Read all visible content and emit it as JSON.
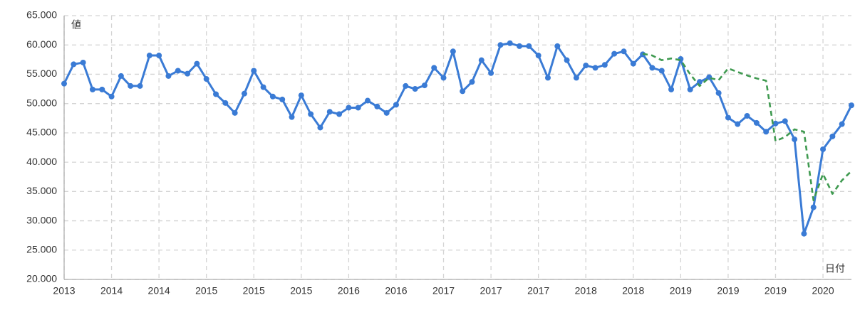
{
  "chart_data": {
    "type": "line",
    "y_label": "値",
    "x_label": "日付",
    "categories": [
      "2013",
      null,
      null,
      null,
      null,
      "2014",
      null,
      null,
      null,
      null,
      "2014",
      null,
      null,
      null,
      null,
      "2015",
      null,
      null,
      null,
      null,
      "2015",
      null,
      null,
      null,
      null,
      "2015",
      null,
      null,
      null,
      null,
      "2016",
      null,
      null,
      null,
      null,
      "2016",
      null,
      null,
      null,
      null,
      "2017",
      null,
      null,
      null,
      null,
      "2017",
      null,
      null,
      null,
      null,
      "2017",
      null,
      null,
      null,
      null,
      "2018",
      null,
      null,
      null,
      null,
      "2018",
      null,
      null,
      null,
      null,
      "2019",
      null,
      null,
      null,
      null,
      "2019",
      null,
      null,
      null,
      null,
      "2019",
      null,
      null,
      null,
      null,
      "2020",
      null,
      null,
      null
    ],
    "series": [
      {
        "color": "#3a7bd5",
        "dashed": false,
        "markers": true,
        "values": [
          53.4,
          56.7,
          57.0,
          52.4,
          52.4,
          51.2,
          54.7,
          53.0,
          53.0,
          58.2,
          58.2,
          54.7,
          55.6,
          55.1,
          56.8,
          54.2,
          51.6,
          50.1,
          48.4,
          51.7,
          55.6,
          52.8,
          51.2,
          50.7,
          47.7,
          51.4,
          48.2,
          45.9,
          48.6,
          48.2,
          49.3,
          49.3,
          50.5,
          49.5,
          48.4,
          49.8,
          53.0,
          52.5,
          53.1,
          56.1,
          54.4,
          58.9,
          52.1,
          53.7,
          57.4,
          55.2,
          60.0,
          60.3,
          59.8,
          59.8,
          58.2,
          54.4,
          59.8,
          57.4,
          54.4,
          56.5,
          56.1,
          56.6,
          58.5,
          58.9,
          56.8,
          58.4,
          56.1,
          55.6,
          52.4,
          57.6,
          52.4,
          53.7,
          54.5,
          51.8,
          47.6,
          46.5,
          47.9,
          46.7,
          45.2,
          46.6,
          47.0,
          43.9,
          27.8,
          32.3,
          42.2,
          44.4,
          46.5,
          49.7
        ]
      },
      {
        "color": "#3f9a50",
        "dashed": true,
        "markers": false,
        "values": [
          null,
          null,
          null,
          null,
          null,
          null,
          null,
          null,
          null,
          null,
          null,
          null,
          null,
          null,
          null,
          null,
          null,
          null,
          null,
          null,
          null,
          null,
          null,
          null,
          null,
          null,
          null,
          null,
          null,
          null,
          null,
          null,
          null,
          null,
          null,
          null,
          null,
          null,
          null,
          null,
          null,
          null,
          null,
          null,
          null,
          null,
          null,
          null,
          null,
          null,
          null,
          null,
          null,
          null,
          null,
          null,
          null,
          null,
          null,
          null,
          null,
          58.5,
          58.2,
          57.4,
          57.7,
          57.4,
          55.0,
          53.0,
          54.4,
          54.0,
          56.0,
          55.4,
          54.8,
          54.3,
          53.9,
          43.6,
          44.3,
          45.6,
          45.2,
          33.5,
          38.0,
          34.6,
          36.9,
          38.5
        ]
      }
    ],
    "ylim": [
      20,
      65
    ],
    "yticks": [
      {
        "value": 20,
        "label": "20.000"
      },
      {
        "value": 25,
        "label": "25.000"
      },
      {
        "value": 30,
        "label": "30.000"
      },
      {
        "value": 35,
        "label": "35.000"
      },
      {
        "value": 40,
        "label": "40.000"
      },
      {
        "value": 45,
        "label": "45.000"
      },
      {
        "value": 50,
        "label": "50.000"
      },
      {
        "value": 55,
        "label": "55.000"
      },
      {
        "value": 60,
        "label": "60.000"
      },
      {
        "value": 65,
        "label": "65.000"
      }
    ],
    "grid": true
  }
}
